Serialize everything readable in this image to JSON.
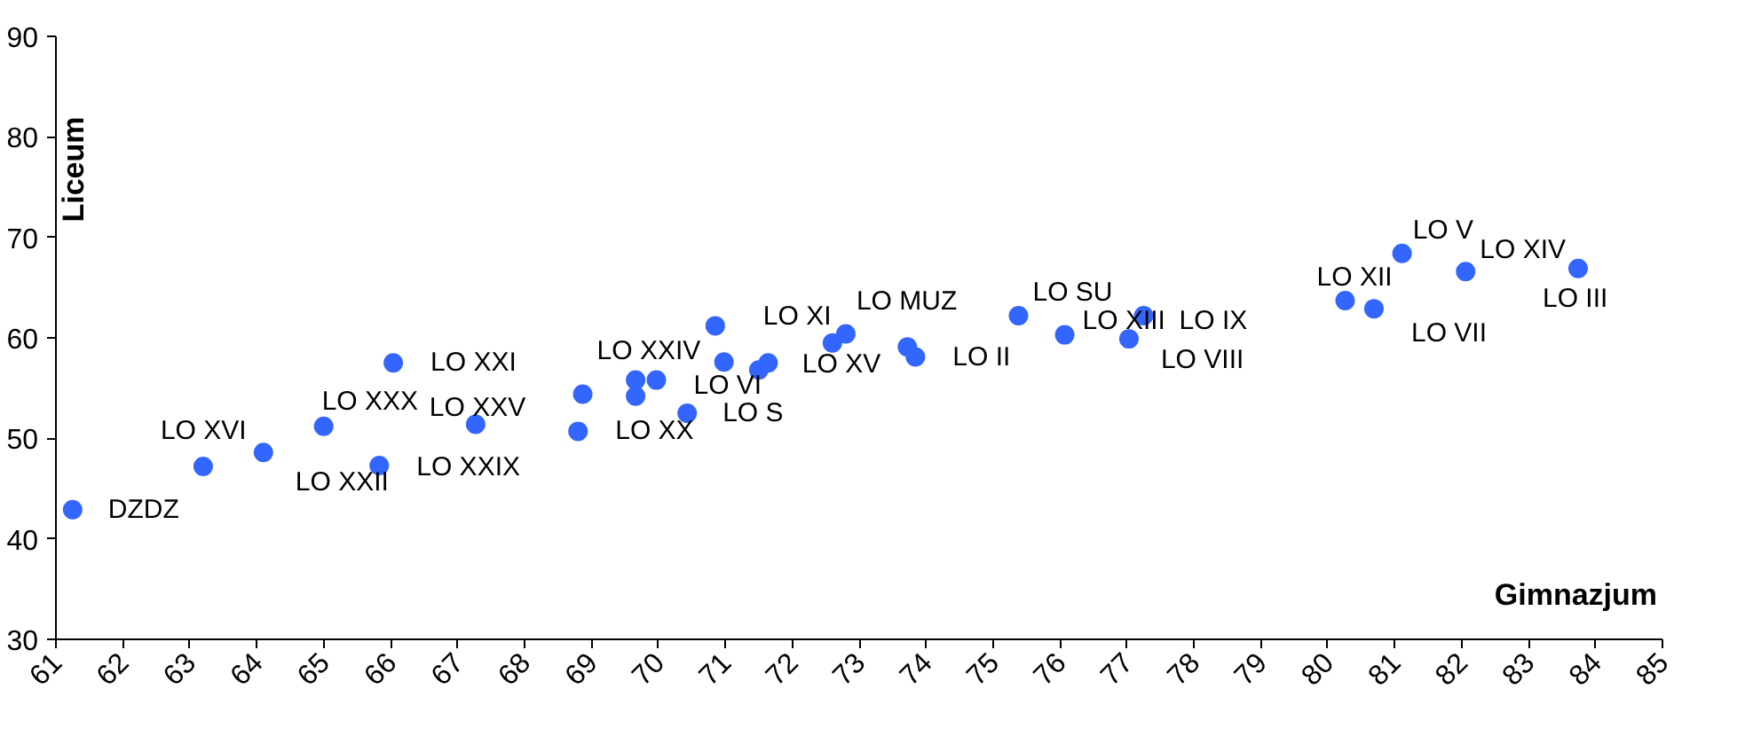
{
  "chart_data": {
    "type": "scatter",
    "xlabel": "Gimnazjum",
    "ylabel": "Liceum",
    "xlim": [
      61,
      85
    ],
    "ylim": [
      30,
      90
    ],
    "xticks": [
      61,
      62,
      63,
      64,
      65,
      66,
      67,
      68,
      69,
      70,
      71,
      72,
      73,
      74,
      75,
      76,
      77,
      78,
      79,
      80,
      81,
      82,
      83,
      84,
      85
    ],
    "yticks": [
      30,
      40,
      50,
      60,
      70,
      80,
      90
    ],
    "grid": false,
    "marker": "circle",
    "series": [
      {
        "color": "#3366ff",
        "x": [
          61.25,
          63.2,
          64.1,
          65.0,
          65.83,
          66.04,
          67.27,
          68.87,
          68.8,
          69.66,
          69.66,
          69.97,
          70.43,
          70.85,
          70.98,
          71.5,
          71.64,
          72.6,
          72.8,
          73.72,
          73.84,
          75.38,
          76.07,
          77.03,
          77.25,
          80.26,
          80.69,
          81.11,
          82.06,
          83.74
        ],
        "values": [
          42.9,
          47.2,
          48.6,
          51.2,
          47.3,
          57.5,
          51.4,
          54.4,
          50.7,
          55.8,
          54.2,
          55.8,
          52.5,
          61.2,
          57.6,
          56.8,
          57.5,
          59.5,
          60.4,
          59.1,
          58.1,
          62.2,
          60.3,
          59.9,
          62.2,
          63.7,
          62.9,
          68.4,
          66.6,
          66.9
        ],
        "value_labels": [
          "DZDZ",
          "LO XVI",
          "LO XXII",
          "LO XXX",
          "LO XXIX",
          "LO XXI",
          "LO XXV",
          "LO XXIV",
          "LO XX",
          null,
          null,
          "LO VI",
          "LO S",
          "LO XI",
          null,
          null,
          null,
          "LO XV",
          "LO MUZ",
          null,
          "LO II",
          "LO SU",
          "LO XIII",
          "LO VIII",
          "LO IX",
          "LO XII",
          "LO VII",
          "LO V",
          "LO XIV",
          "LO III"
        ]
      }
    ]
  }
}
